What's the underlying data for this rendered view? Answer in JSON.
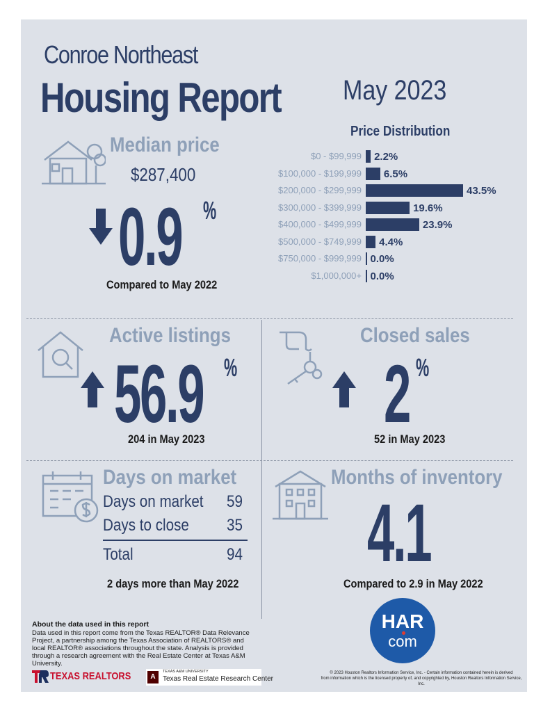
{
  "header": {
    "area": "Conroe Northeast",
    "title": "Housing Report",
    "period": "May 2023"
  },
  "median_price": {
    "heading": "Median price",
    "value": "$287,400",
    "change": "0.9",
    "pct_sign": "%",
    "direction": "down",
    "caption": "Compared to May 2022",
    "icon": "house-tree-icon"
  },
  "price_distribution": {
    "title": "Price Distribution"
  },
  "chart_data": {
    "type": "bar",
    "title": "Price Distribution",
    "orientation": "horizontal",
    "categories": [
      "$0 - $99,999",
      "$100,000 - $199,999",
      "$200,000 - $299,999",
      "$300,000 - $399,999",
      "$400,000 - $499,999",
      "$500,000 - $749,999",
      "$750,000 - $999,999",
      "$1,000,000+"
    ],
    "values": [
      2.2,
      6.5,
      43.5,
      19.6,
      23.9,
      4.4,
      0.0,
      0.0
    ],
    "value_labels": [
      "2.2%",
      "6.5%",
      "43.5%",
      "19.6%",
      "23.9%",
      "4.4%",
      "0.0%",
      "0.0%"
    ],
    "bar_color": "#2c3e66"
  },
  "active_listings": {
    "heading": "Active listings",
    "change": "56.9",
    "pct_sign": "%",
    "direction": "up",
    "caption": "204 in May 2023",
    "icon": "house-magnifier-icon"
  },
  "closed_sales": {
    "heading": "Closed sales",
    "change": "2",
    "pct_sign": "%",
    "direction": "up",
    "caption": "52 in May 2023",
    "icon": "hand-keys-icon"
  },
  "days_on_market": {
    "heading": "Days on market",
    "rows": [
      {
        "label": "Days on market",
        "value": "59"
      },
      {
        "label": "Days to close",
        "value": "35"
      }
    ],
    "total_label": "Total",
    "total_value": "94",
    "caption": "2 days more than May 2022",
    "icon": "calendar-dollar-icon"
  },
  "months_inventory": {
    "heading": "Months of inventory",
    "value": "4.1",
    "caption": "Compared to 2.9 in May 2022",
    "icon": "apartment-building-icon"
  },
  "about": {
    "title": "About the data used in this report",
    "body": "Data used in this report come from the Texas REALTOR® Data Relevance Project, a partnership among the Texas Association of REALTORS® and local REALTOR® associations throughout the state. Analysis is provided through a research agreement with the Real Estate Center at Texas A&M University."
  },
  "logos": {
    "har_top": "HAR",
    "har_bottom": "com",
    "texas_realtors": "TEXAS REALTORS",
    "tamu_small": "TEXAS A&M UNIVERSITY",
    "tamu_center": "Texas Real Estate Research Center"
  },
  "copyright": {
    "line1": "© 2023 Houston Realtors Information Service, Inc. - Certain information contained herein is derived",
    "line2": "from information which is the licensed property of, and copyrighted by, Houston Realtors Information Service, Inc."
  },
  "colors": {
    "navy": "#2c3e66",
    "slate": "#8ea0b8",
    "panel": "#dde1e8",
    "har_blue": "#1e5aa8",
    "texas_red": "#c8102e",
    "tamu_maroon": "#500000"
  }
}
